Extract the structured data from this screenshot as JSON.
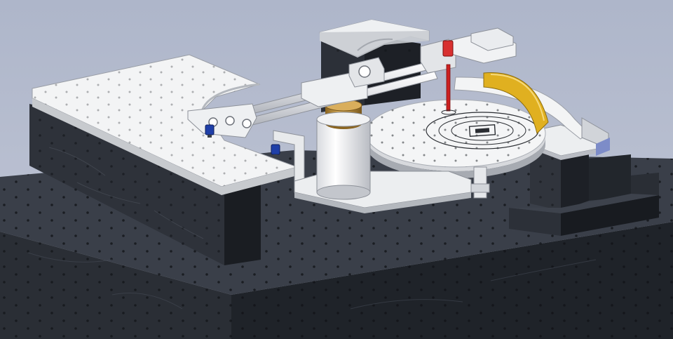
{
  "scene": {
    "colors": {
      "background_top": "#aeb6ca",
      "background_bottom": "#c2c7d6",
      "granite_top": "#3a3f49",
      "granite_side": "#24282f",
      "granite_dark": "#191c21",
      "plate_white": "#f3f4f5",
      "plate_edge": "#c9ccd1",
      "brass": "#b58a3a",
      "gold_arc": "#e0b020",
      "red_marker": "#cc2020",
      "blue_knob": "#1f3fa8"
    },
    "objects": [
      "granite-base",
      "left-support-block",
      "right-support-block",
      "rear-support-block",
      "left-top-plate",
      "rear-top-plate",
      "rotary-turntable",
      "cylindrical-column",
      "twin-rail-arm",
      "gold-arc-scale",
      "red-probe",
      "leveling-knobs"
    ]
  }
}
